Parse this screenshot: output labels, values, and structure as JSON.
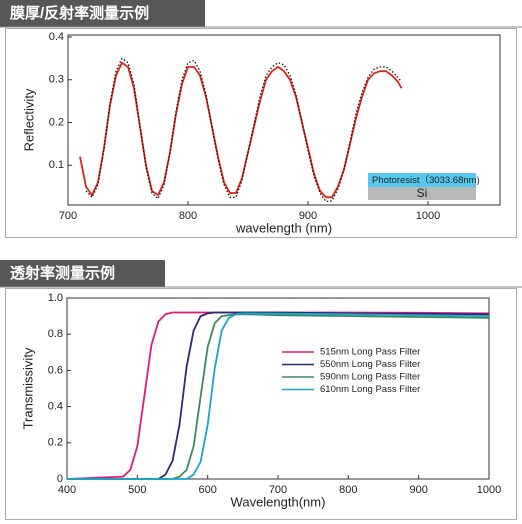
{
  "chart_data": [
    {
      "type": "line",
      "title": "膜厚/反射率测量示例",
      "xlabel": "wavelength (nm)",
      "ylabel": "Reflectivity",
      "xlim": [
        700,
        1060
      ],
      "ylim": [
        0,
        0.4
      ],
      "xticks": [
        700,
        800,
        900,
        1000
      ],
      "yticks": [
        0.1,
        0.2,
        0.3,
        0.4
      ],
      "annotations": [
        "Photoresist（3033.68nm)",
        "Si"
      ],
      "x": [
        710,
        715,
        720,
        725,
        730,
        735,
        740,
        745,
        750,
        755,
        760,
        765,
        770,
        775,
        780,
        785,
        790,
        795,
        800,
        805,
        810,
        815,
        820,
        825,
        830,
        835,
        840,
        845,
        850,
        855,
        860,
        865,
        870,
        875,
        880,
        885,
        890,
        895,
        900,
        905,
        910,
        915,
        920,
        925,
        930,
        935,
        940,
        945,
        950,
        955,
        960,
        965,
        970,
        975,
        978
      ],
      "series": [
        {
          "color": "#e02418",
          "style": "solid",
          "values": [
            0.12,
            0.05,
            0.03,
            0.06,
            0.14,
            0.24,
            0.31,
            0.34,
            0.33,
            0.28,
            0.19,
            0.1,
            0.04,
            0.03,
            0.06,
            0.13,
            0.22,
            0.29,
            0.33,
            0.33,
            0.31,
            0.26,
            0.19,
            0.12,
            0.06,
            0.035,
            0.035,
            0.07,
            0.13,
            0.19,
            0.25,
            0.3,
            0.32,
            0.33,
            0.32,
            0.3,
            0.26,
            0.2,
            0.14,
            0.08,
            0.04,
            0.025,
            0.025,
            0.05,
            0.09,
            0.15,
            0.21,
            0.26,
            0.3,
            0.315,
            0.32,
            0.32,
            0.31,
            0.295,
            0.28
          ]
        },
        {
          "color": "#111111",
          "style": "dotted",
          "values": [
            null,
            0.04,
            0.025,
            0.055,
            0.14,
            0.245,
            0.32,
            0.35,
            0.34,
            0.29,
            0.19,
            0.095,
            0.035,
            0.022,
            0.055,
            0.13,
            0.225,
            0.3,
            0.34,
            0.345,
            0.32,
            0.265,
            0.19,
            0.115,
            0.055,
            0.025,
            0.025,
            0.065,
            0.13,
            0.195,
            0.26,
            0.31,
            0.33,
            0.34,
            0.335,
            0.31,
            0.265,
            0.2,
            0.135,
            0.075,
            0.035,
            0.015,
            0.017,
            0.045,
            0.09,
            0.155,
            0.22,
            0.27,
            0.305,
            0.325,
            0.33,
            0.33,
            0.32,
            0.305,
            0.295
          ]
        }
      ]
    },
    {
      "type": "line",
      "title": "透射率测量示例",
      "xlabel": "Wavelength(nm)",
      "ylabel": "Transmissivity",
      "xlim": [
        400,
        1000
      ],
      "ylim": [
        0,
        1
      ],
      "xticks": [
        400,
        500,
        600,
        700,
        800,
        900,
        1000
      ],
      "yticks": [
        0,
        0.2,
        0.4,
        0.6,
        0.8,
        {
          "value": 1,
          "label": "1.0"
        }
      ],
      "x": [
        400,
        480,
        490,
        500,
        510,
        520,
        530,
        540,
        550,
        560,
        570,
        580,
        590,
        600,
        610,
        620,
        630,
        640,
        650,
        660,
        700,
        800,
        900,
        1000
      ],
      "series": [
        {
          "name": "515nm Long Pass Filter",
          "color": "#e0187a",
          "style": "solid",
          "values": [
            0,
            0.013,
            0.05,
            0.18,
            0.46,
            0.74,
            0.87,
            0.91,
            0.92,
            0.92,
            0.92,
            0.92,
            0.92,
            0.92,
            0.92,
            0.92,
            0.92,
            0.92,
            0.92,
            0.92,
            0.92,
            0.92,
            0.918,
            0.915
          ]
        },
        {
          "name": "550nm Long Pass Filter",
          "color": "#2b2a78",
          "style": "solid",
          "values": [
            0,
            0,
            0,
            0,
            0,
            0,
            0,
            0.025,
            0.1,
            0.3,
            0.62,
            0.82,
            0.9,
            0.915,
            0.92,
            0.92,
            0.92,
            0.92,
            0.92,
            0.92,
            0.92,
            0.915,
            0.912,
            0.91
          ]
        },
        {
          "name": "590nm Long Pass Filter",
          "color": "#3c8a5c",
          "style": "solid",
          "values": [
            0,
            0,
            0,
            0,
            0,
            0,
            0,
            0,
            0,
            0.013,
            0.05,
            0.18,
            0.455,
            0.73,
            0.86,
            0.9,
            0.905,
            0.91,
            0.91,
            0.91,
            0.905,
            0.9,
            0.895,
            0.89
          ]
        },
        {
          "name": "610nm Long Pass Filter",
          "color": "#1aa6c8",
          "style": "solid",
          "values": [
            0,
            0,
            0,
            0,
            0,
            0,
            0,
            0,
            0,
            0,
            0,
            0.025,
            0.095,
            0.3,
            0.61,
            0.82,
            0.89,
            0.91,
            0.915,
            0.915,
            0.913,
            0.91,
            0.905,
            0.9
          ]
        }
      ]
    }
  ]
}
